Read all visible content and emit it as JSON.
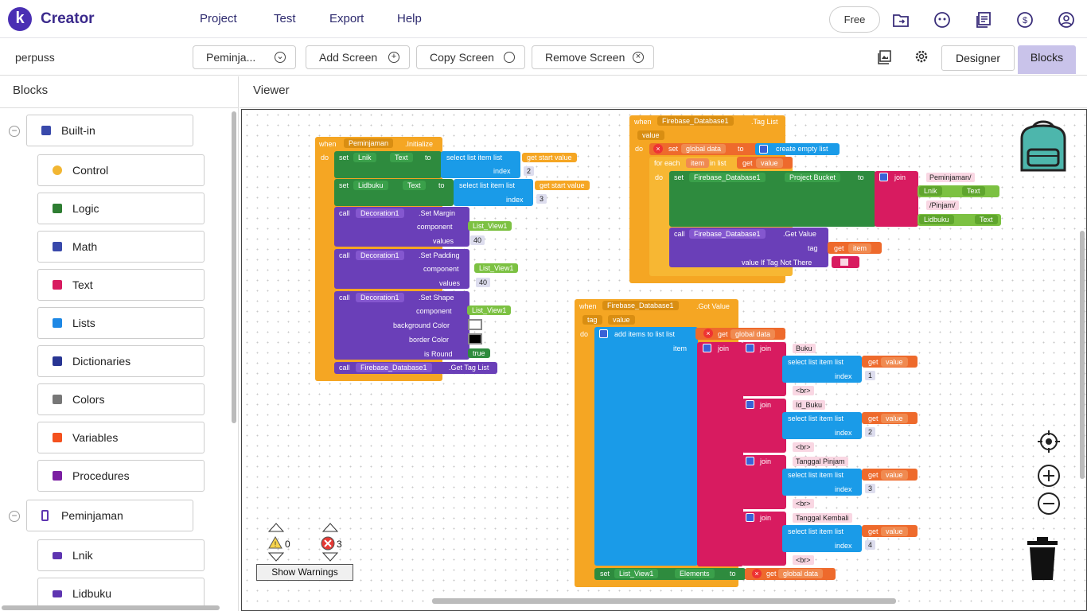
{
  "header": {
    "logo_letter": "k",
    "brand": "Creator",
    "nav": [
      "Project",
      "Test",
      "Export",
      "Help"
    ],
    "free_label": "Free"
  },
  "toolbar": {
    "project": "perpuss",
    "screen_select": "Peminja...",
    "add_screen": "Add Screen",
    "copy_screen": "Copy Screen",
    "remove_screen": "Remove Screen",
    "designer": "Designer",
    "blocks": "Blocks"
  },
  "left_panel": {
    "title": "Blocks",
    "builtin_label": "Built-in",
    "builtin_items": [
      {
        "label": "Control",
        "color": "#f2b632"
      },
      {
        "label": "Logic",
        "color": "#2e7d32"
      },
      {
        "label": "Math",
        "color": "#3949ab"
      },
      {
        "label": "Text",
        "color": "#d81b60"
      },
      {
        "label": "Lists",
        "color": "#1e88e5"
      },
      {
        "label": "Dictionaries",
        "color": "#283593"
      },
      {
        "label": "Colors",
        "color": "#777777"
      },
      {
        "label": "Variables",
        "color": "#f4511e"
      },
      {
        "label": "Procedures",
        "color": "#7b1fa2"
      }
    ],
    "screen_label": "Peminjaman",
    "screen_items": [
      {
        "label": "Lnik",
        "color": "#5e35b1"
      },
      {
        "label": "Lidbuku",
        "color": "#5e35b1"
      }
    ]
  },
  "viewer": {
    "title": "Viewer"
  },
  "warnings": {
    "warn_count": "0",
    "error_count": "3",
    "show_label": "Show Warnings"
  },
  "blocks": {
    "init": {
      "when": "when",
      "comp": "Peminjaman",
      "event": ".Initialize",
      "do": "do",
      "set": "set",
      "lnik": "Lnik",
      "text": "Text",
      "to": "to",
      "sel": "select list item  list",
      "getsv": "get start value",
      "index": "index",
      "i2": "2",
      "lidbuku": "Lidbuku",
      "i3": "3",
      "call": "call",
      "deco": "Decoration1",
      "margin": ".Set Margin",
      "component": "component",
      "lv": "List_View1",
      "values": "values",
      "v40": "40",
      "padding": ".Set Padding",
      "shape": ".Set Shape",
      "bgc": "background Color",
      "bc": "border Color",
      "isround": "is Round",
      "true": "true",
      "fb": "Firebase_Database1",
      "gettag": ".Get Tag List"
    },
    "taglist": {
      "when": "when",
      "comp": "Firebase_Database1",
      "event": ".Tag List",
      "value": "value",
      "do": "do",
      "set": "set",
      "gd": "global data",
      "to": "to",
      "cel": "create empty list",
      "for": "for each",
      "item": "item",
      "inlist": "in list",
      "get": "get",
      "gvalue": "value",
      "pbucket": "Project Bucket",
      "join": "join",
      "s1": "Peminjaman/",
      "lnik": "Lnik",
      "text": "Text",
      "s2": "/Pinjam/",
      "lidbuku": "Lidbuku",
      "call": "call",
      "getv": ".Get Value",
      "tag": "tag",
      "gitem": "item",
      "vitn": "value If Tag Not There"
    },
    "gotvalue": {
      "when": "when",
      "comp": "Firebase_Database1",
      "event": ".Got Value",
      "tag": "tag",
      "value": "value",
      "do": "do",
      "add": "add items to list  list",
      "get": "get",
      "gd": "global data",
      "item": "item",
      "join": "join",
      "buku": "Buku",
      "sel": "select list item  list",
      "index": "index",
      "br": "<br>",
      "idbuku": "Id_Buku",
      "tp": "Tanggal Pinjam",
      "tk": "Tanggal Kembali",
      "i1": "1",
      "i2": "2",
      "i3": "3",
      "i4": "4",
      "set": "set",
      "lv": "List_View1",
      "el": "Elements",
      "to": "to"
    }
  }
}
